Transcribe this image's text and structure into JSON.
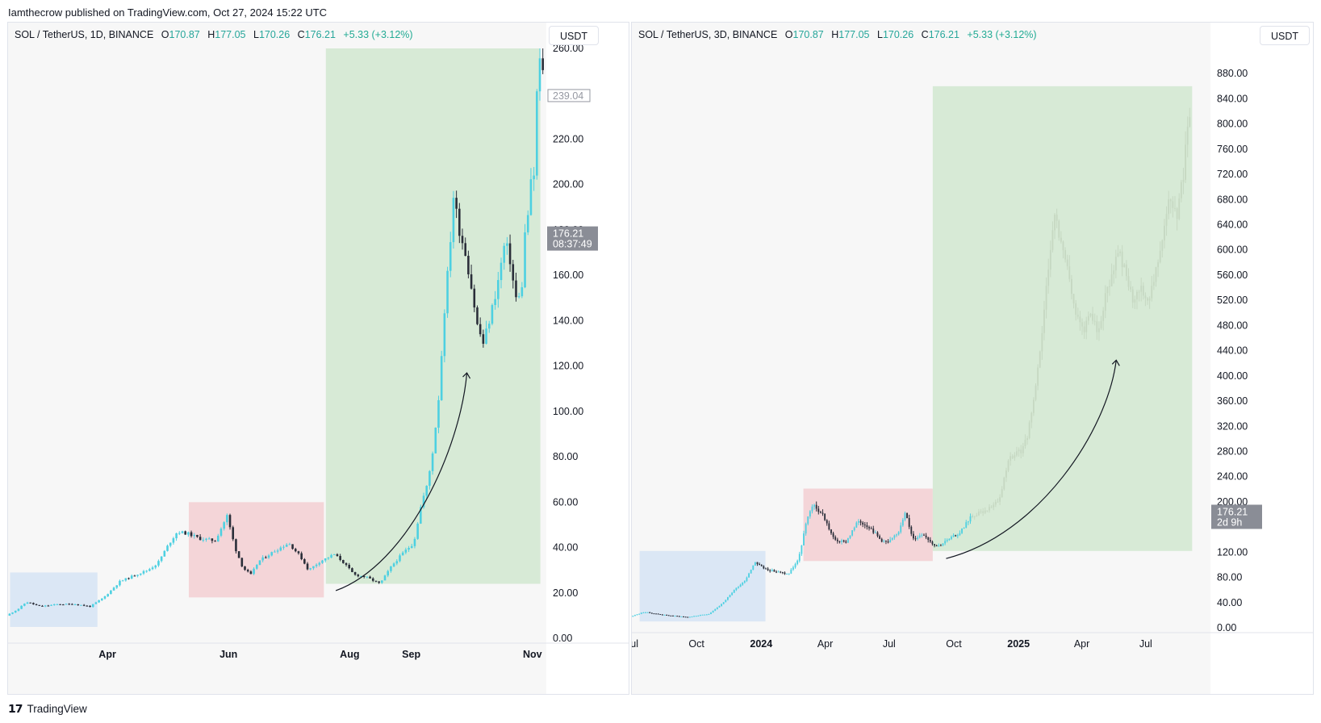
{
  "byline": "Iamthecrow published on TradingView.com, Oct 27, 2024 15:22 UTC",
  "footer": {
    "logo_glyph": "𝟭𝟳",
    "brand": "TradingView"
  },
  "colors": {
    "up": "#4dd0e1",
    "down": "#2a2e39",
    "blue_zone": "#dbe7f5",
    "red_zone": "#f4d5d8",
    "green_zone": "#d7ead6",
    "ghost": "#c6d8c2"
  },
  "chart_data": [
    {
      "type": "candlestick",
      "symbol": "SOL / TetherUS, 1D, BINANCE",
      "ohlc": {
        "o_label": "O",
        "o": "170.87",
        "h_label": "H",
        "h": "177.05",
        "l_label": "L",
        "l": "170.26",
        "c_label": "C",
        "c": "176.21",
        "change": "+5.33 (+3.12%)"
      },
      "currency": "USDT",
      "ylim": [
        0,
        260
      ],
      "y_ticks": [
        {
          "v": 0,
          "label": "0.00"
        },
        {
          "v": 20,
          "label": "20.00"
        },
        {
          "v": 40,
          "label": "40.00"
        },
        {
          "v": 60,
          "label": "60.00"
        },
        {
          "v": 80,
          "label": "80.00"
        },
        {
          "v": 100,
          "label": "100.00"
        },
        {
          "v": 120,
          "label": "120.00"
        },
        {
          "v": 140,
          "label": "140.00"
        },
        {
          "v": 160,
          "label": "160.00"
        },
        {
          "v": 180,
          "label": "180.00"
        },
        {
          "v": 200,
          "label": "200.00"
        },
        {
          "v": 220,
          "label": "220.00"
        },
        {
          "v": 260,
          "label": "260.00"
        }
      ],
      "x_ticks": [
        {
          "d": "2023-04-01",
          "label": "Apr"
        },
        {
          "d": "2023-06-01",
          "label": "Jun"
        },
        {
          "d": "2023-08-01",
          "label": "Aug"
        },
        {
          "d": "2023-09-01",
          "label": "Sep"
        },
        {
          "d": "2023-11-01",
          "label": "Nov"
        }
      ],
      "xlim": [
        "2023-02-10",
        "2023-11-08"
      ],
      "price_tags": [
        {
          "v": 239.04,
          "label": "239.04",
          "style": "outline"
        }
      ],
      "last_price": {
        "v": 176.21,
        "label": "176.21",
        "countdown": "08:37:49"
      },
      "zones": [
        {
          "color": "blue",
          "x0": "2023-02-11",
          "x1": "2023-03-27",
          "y0": 5,
          "y1": 29
        },
        {
          "color": "red",
          "x0": "2023-05-12",
          "x1": "2023-07-19",
          "y0": 18,
          "y1": 60
        },
        {
          "color": "green",
          "x0": "2023-07-20",
          "x1": "2023-11-05",
          "y0": 24,
          "y1": 260
        }
      ],
      "arrow": {
        "from": [
          "2023-07-25",
          21
        ],
        "to": [
          "2023-09-29",
          117
        ]
      },
      "series_points": [
        [
          "2023-02-10",
          10
        ],
        [
          "2023-02-16",
          13
        ],
        [
          "2023-02-20",
          16
        ],
        [
          "2023-02-27",
          14
        ],
        [
          "2023-03-08",
          15
        ],
        [
          "2023-03-17",
          15
        ],
        [
          "2023-03-24",
          14
        ],
        [
          "2023-03-31",
          18
        ],
        [
          "2023-04-08",
          25
        ],
        [
          "2023-04-16",
          28
        ],
        [
          "2023-04-22",
          30
        ],
        [
          "2023-04-27",
          33
        ],
        [
          "2023-05-03",
          42
        ],
        [
          "2023-05-07",
          47
        ],
        [
          "2023-05-13",
          46
        ],
        [
          "2023-05-18",
          44
        ],
        [
          "2023-05-26",
          43
        ],
        [
          "2023-06-01",
          54
        ],
        [
          "2023-06-05",
          40
        ],
        [
          "2023-06-09",
          31
        ],
        [
          "2023-06-13",
          28
        ],
        [
          "2023-06-17",
          34
        ],
        [
          "2023-06-24",
          38
        ],
        [
          "2023-07-02",
          42
        ],
        [
          "2023-07-08",
          36
        ],
        [
          "2023-07-12",
          30
        ],
        [
          "2023-07-18",
          34
        ],
        [
          "2023-07-25",
          37
        ],
        [
          "2023-07-29",
          34
        ],
        [
          "2023-08-04",
          28
        ],
        [
          "2023-08-10",
          27
        ],
        [
          "2023-08-17",
          24
        ],
        [
          "2023-08-23",
          32
        ],
        [
          "2023-08-29",
          38
        ],
        [
          "2023-09-03",
          42
        ],
        [
          "2023-09-07",
          60
        ],
        [
          "2023-09-10",
          68
        ],
        [
          "2023-09-13",
          85
        ],
        [
          "2023-09-16",
          110
        ],
        [
          "2023-09-18",
          140
        ],
        [
          "2023-09-21",
          170
        ],
        [
          "2023-09-23",
          195
        ],
        [
          "2023-09-26",
          180
        ],
        [
          "2023-09-29",
          170
        ],
        [
          "2023-10-02",
          155
        ],
        [
          "2023-10-05",
          138
        ],
        [
          "2023-10-08",
          130
        ],
        [
          "2023-10-11",
          140
        ],
        [
          "2023-10-15",
          155
        ],
        [
          "2023-10-19",
          175
        ],
        [
          "2023-10-22",
          165
        ],
        [
          "2023-10-24",
          150
        ],
        [
          "2023-10-26",
          150
        ],
        [
          "2023-10-28",
          158
        ],
        [
          "2023-10-29",
          178
        ],
        [
          "2023-10-31",
          190
        ],
        [
          "2023-11-01",
          200
        ],
        [
          "2023-11-02",
          193
        ],
        [
          "2023-11-03",
          215
        ],
        [
          "2023-11-04",
          240
        ],
        [
          "2023-11-05",
          255
        ],
        [
          "2023-11-06",
          252
        ]
      ]
    },
    {
      "type": "candlestick",
      "symbol": "SOL / TetherUS, 3D, BINANCE",
      "ohlc": {
        "o_label": "O",
        "o": "170.87",
        "h_label": "H",
        "h": "177.05",
        "l_label": "L",
        "l": "170.26",
        "c_label": "C",
        "c": "176.21",
        "change": "+5.33 (+3.12%)"
      },
      "currency": "USDT",
      "ylim": [
        0,
        920
      ],
      "y_ticks": [
        {
          "v": 0,
          "label": "0.00"
        },
        {
          "v": 40,
          "label": "40.00"
        },
        {
          "v": 80,
          "label": "80.00"
        },
        {
          "v": 120,
          "label": "120.00"
        },
        {
          "v": 200,
          "label": "200.00"
        },
        {
          "v": 240,
          "label": "240.00"
        },
        {
          "v": 280,
          "label": "280.00"
        },
        {
          "v": 320,
          "label": "320.00"
        },
        {
          "v": 360,
          "label": "360.00"
        },
        {
          "v": 400,
          "label": "400.00"
        },
        {
          "v": 440,
          "label": "440.00"
        },
        {
          "v": 480,
          "label": "480.00"
        },
        {
          "v": 520,
          "label": "520.00"
        },
        {
          "v": 560,
          "label": "560.00"
        },
        {
          "v": 600,
          "label": "600.00"
        },
        {
          "v": 640,
          "label": "640.00"
        },
        {
          "v": 680,
          "label": "680.00"
        },
        {
          "v": 720,
          "label": "720.00"
        },
        {
          "v": 760,
          "label": "760.00"
        },
        {
          "v": 800,
          "label": "800.00"
        },
        {
          "v": 840,
          "label": "840.00"
        },
        {
          "v": 880,
          "label": "880.00"
        }
      ],
      "x_ticks": [
        {
          "d": "2023-07-01",
          "label": "Jul",
          "bold": false
        },
        {
          "d": "2023-10-01",
          "label": "Oct",
          "bold": false
        },
        {
          "d": "2024-01-01",
          "label": "2024",
          "bold": true
        },
        {
          "d": "2024-04-01",
          "label": "Apr",
          "bold": false
        },
        {
          "d": "2024-07-01",
          "label": "Jul",
          "bold": false
        },
        {
          "d": "2024-10-01",
          "label": "Oct",
          "bold": false
        },
        {
          "d": "2025-01-01",
          "label": "2025",
          "bold": true
        },
        {
          "d": "2025-04-01",
          "label": "Apr",
          "bold": false
        },
        {
          "d": "2025-07-01",
          "label": "Jul",
          "bold": false
        }
      ],
      "xlim": [
        "2023-07-01",
        "2025-10-01"
      ],
      "last_price": {
        "v": 176.21,
        "label": "176.21",
        "countdown": "2d 9h"
      },
      "zones": [
        {
          "color": "blue",
          "x0": "2023-07-12",
          "x1": "2024-01-07",
          "y0": 10,
          "y1": 122
        },
        {
          "color": "red",
          "x0": "2024-03-01",
          "x1": "2024-09-01",
          "y0": 106,
          "y1": 221
        },
        {
          "color": "green",
          "x0": "2024-09-01",
          "x1": "2025-09-05",
          "y0": 122,
          "y1": 860
        }
      ],
      "arrow": {
        "from": [
          "2024-09-20",
          110
        ],
        "to": [
          "2025-05-20",
          425
        ]
      },
      "series_points": [
        [
          "2023-07-01",
          18
        ],
        [
          "2023-07-20",
          25
        ],
        [
          "2023-08-20",
          20
        ],
        [
          "2023-09-20",
          17
        ],
        [
          "2023-10-20",
          22
        ],
        [
          "2023-11-10",
          40
        ],
        [
          "2023-11-25",
          60
        ],
        [
          "2023-12-10",
          75
        ],
        [
          "2023-12-25",
          105
        ],
        [
          "2024-01-05",
          95
        ],
        [
          "2024-01-20",
          90
        ],
        [
          "2024-02-10",
          85
        ],
        [
          "2024-02-25",
          110
        ],
        [
          "2024-03-05",
          160
        ],
        [
          "2024-03-15",
          195
        ],
        [
          "2024-03-30",
          180
        ],
        [
          "2024-04-15",
          140
        ],
        [
          "2024-05-01",
          135
        ],
        [
          "2024-05-20",
          170
        ],
        [
          "2024-06-05",
          160
        ],
        [
          "2024-06-20",
          140
        ],
        [
          "2024-07-01",
          135
        ],
        [
          "2024-07-15",
          150
        ],
        [
          "2024-07-25",
          185
        ],
        [
          "2024-08-05",
          140
        ],
        [
          "2024-08-20",
          150
        ],
        [
          "2024-09-01",
          135
        ],
        [
          "2024-09-10",
          130
        ],
        [
          "2024-09-25",
          140
        ],
        [
          "2024-10-10",
          150
        ],
        [
          "2024-10-26",
          176
        ]
      ],
      "ghost_points": [
        [
          "2024-10-26",
          176
        ],
        [
          "2024-11-15",
          185
        ],
        [
          "2024-12-05",
          200
        ],
        [
          "2024-12-20",
          270
        ],
        [
          "2025-01-05",
          280
        ],
        [
          "2025-01-15",
          300
        ],
        [
          "2025-01-25",
          370
        ],
        [
          "2025-02-05",
          460
        ],
        [
          "2025-02-15",
          590
        ],
        [
          "2025-02-25",
          660
        ],
        [
          "2025-03-05",
          600
        ],
        [
          "2025-03-15",
          560
        ],
        [
          "2025-03-25",
          500
        ],
        [
          "2025-04-05",
          470
        ],
        [
          "2025-04-15",
          500
        ],
        [
          "2025-04-25",
          470
        ],
        [
          "2025-05-05",
          520
        ],
        [
          "2025-05-15",
          560
        ],
        [
          "2025-05-25",
          600
        ],
        [
          "2025-06-05",
          560
        ],
        [
          "2025-06-15",
          510
        ],
        [
          "2025-06-25",
          540
        ],
        [
          "2025-07-05",
          520
        ],
        [
          "2025-07-15",
          560
        ],
        [
          "2025-07-25",
          620
        ],
        [
          "2025-08-05",
          680
        ],
        [
          "2025-08-15",
          650
        ],
        [
          "2025-08-25",
          720
        ],
        [
          "2025-09-01",
          800
        ]
      ]
    }
  ]
}
